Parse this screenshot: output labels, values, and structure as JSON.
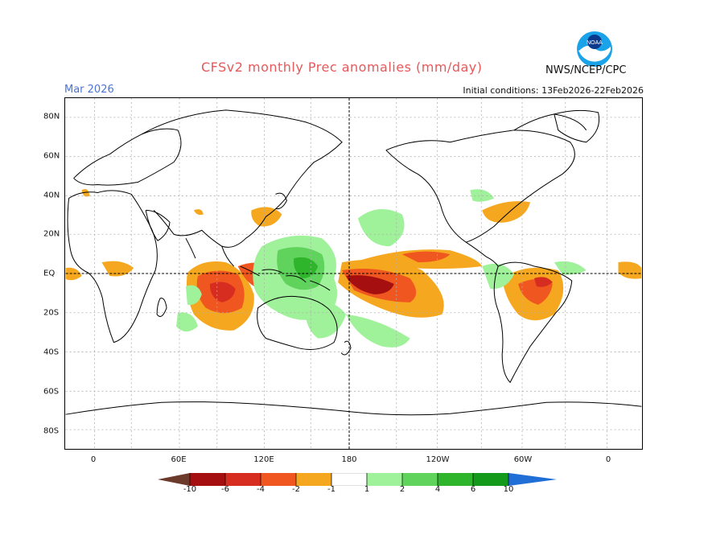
{
  "title": "CFSv2 monthly Prec anomalies (mm/day)",
  "month": "Mar 2026",
  "initial_conditions": "Initial conditions: 13Feb2026-22Feb2026",
  "agency": "NWS/NCEP/CPC",
  "logo_text": "NOAA",
  "lon_labels": [
    "0",
    "60E",
    "120E",
    "180",
    "120W",
    "60W",
    "0"
  ],
  "lat_labels": [
    "80N",
    "60N",
    "40N",
    "20N",
    "EQ",
    "20S",
    "40S",
    "60S",
    "80S"
  ],
  "colorbar": {
    "ticks": [
      "-10",
      "-6",
      "-4",
      "-2",
      "-1",
      "1",
      "2",
      "4",
      "6",
      "10"
    ],
    "colors": {
      "lt-10": "#6b3a2a",
      "-10_-6": "#a50f0f",
      "-6_-4": "#d62d20",
      "-4_-2": "#f0561f",
      "-2_-1": "#f5a81f",
      "-1_1": "#ffffff",
      "1_2": "#9ff29a",
      "2_4": "#5fd35c",
      "4_6": "#2eb52b",
      "6_10": "#139a1a",
      "gt10": "#1f6fd6"
    }
  }
}
